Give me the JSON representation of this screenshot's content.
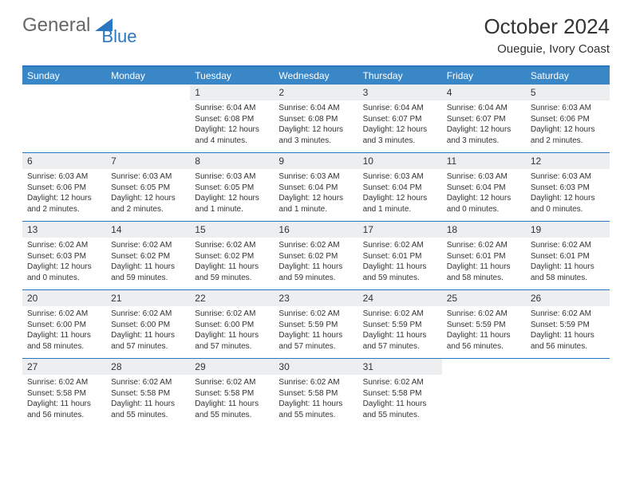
{
  "logo": {
    "text1": "General",
    "text2": "Blue"
  },
  "title": "October 2024",
  "location": "Oueguie, Ivory Coast",
  "colors": {
    "accent": "#3a87c8",
    "accent_dark": "#2a78c2",
    "head_bg": "#eceef0",
    "text": "#333333",
    "bg": "#ffffff"
  },
  "dow": [
    "Sunday",
    "Monday",
    "Tuesday",
    "Wednesday",
    "Thursday",
    "Friday",
    "Saturday"
  ],
  "weeks": [
    [
      null,
      null,
      {
        "n": "1",
        "sr": "Sunrise: 6:04 AM",
        "ss": "Sunset: 6:08 PM",
        "dl": "Daylight: 12 hours and 4 minutes."
      },
      {
        "n": "2",
        "sr": "Sunrise: 6:04 AM",
        "ss": "Sunset: 6:08 PM",
        "dl": "Daylight: 12 hours and 3 minutes."
      },
      {
        "n": "3",
        "sr": "Sunrise: 6:04 AM",
        "ss": "Sunset: 6:07 PM",
        "dl": "Daylight: 12 hours and 3 minutes."
      },
      {
        "n": "4",
        "sr": "Sunrise: 6:04 AM",
        "ss": "Sunset: 6:07 PM",
        "dl": "Daylight: 12 hours and 3 minutes."
      },
      {
        "n": "5",
        "sr": "Sunrise: 6:03 AM",
        "ss": "Sunset: 6:06 PM",
        "dl": "Daylight: 12 hours and 2 minutes."
      }
    ],
    [
      {
        "n": "6",
        "sr": "Sunrise: 6:03 AM",
        "ss": "Sunset: 6:06 PM",
        "dl": "Daylight: 12 hours and 2 minutes."
      },
      {
        "n": "7",
        "sr": "Sunrise: 6:03 AM",
        "ss": "Sunset: 6:05 PM",
        "dl": "Daylight: 12 hours and 2 minutes."
      },
      {
        "n": "8",
        "sr": "Sunrise: 6:03 AM",
        "ss": "Sunset: 6:05 PM",
        "dl": "Daylight: 12 hours and 1 minute."
      },
      {
        "n": "9",
        "sr": "Sunrise: 6:03 AM",
        "ss": "Sunset: 6:04 PM",
        "dl": "Daylight: 12 hours and 1 minute."
      },
      {
        "n": "10",
        "sr": "Sunrise: 6:03 AM",
        "ss": "Sunset: 6:04 PM",
        "dl": "Daylight: 12 hours and 1 minute."
      },
      {
        "n": "11",
        "sr": "Sunrise: 6:03 AM",
        "ss": "Sunset: 6:04 PM",
        "dl": "Daylight: 12 hours and 0 minutes."
      },
      {
        "n": "12",
        "sr": "Sunrise: 6:03 AM",
        "ss": "Sunset: 6:03 PM",
        "dl": "Daylight: 12 hours and 0 minutes."
      }
    ],
    [
      {
        "n": "13",
        "sr": "Sunrise: 6:02 AM",
        "ss": "Sunset: 6:03 PM",
        "dl": "Daylight: 12 hours and 0 minutes."
      },
      {
        "n": "14",
        "sr": "Sunrise: 6:02 AM",
        "ss": "Sunset: 6:02 PM",
        "dl": "Daylight: 11 hours and 59 minutes."
      },
      {
        "n": "15",
        "sr": "Sunrise: 6:02 AM",
        "ss": "Sunset: 6:02 PM",
        "dl": "Daylight: 11 hours and 59 minutes."
      },
      {
        "n": "16",
        "sr": "Sunrise: 6:02 AM",
        "ss": "Sunset: 6:02 PM",
        "dl": "Daylight: 11 hours and 59 minutes."
      },
      {
        "n": "17",
        "sr": "Sunrise: 6:02 AM",
        "ss": "Sunset: 6:01 PM",
        "dl": "Daylight: 11 hours and 59 minutes."
      },
      {
        "n": "18",
        "sr": "Sunrise: 6:02 AM",
        "ss": "Sunset: 6:01 PM",
        "dl": "Daylight: 11 hours and 58 minutes."
      },
      {
        "n": "19",
        "sr": "Sunrise: 6:02 AM",
        "ss": "Sunset: 6:01 PM",
        "dl": "Daylight: 11 hours and 58 minutes."
      }
    ],
    [
      {
        "n": "20",
        "sr": "Sunrise: 6:02 AM",
        "ss": "Sunset: 6:00 PM",
        "dl": "Daylight: 11 hours and 58 minutes."
      },
      {
        "n": "21",
        "sr": "Sunrise: 6:02 AM",
        "ss": "Sunset: 6:00 PM",
        "dl": "Daylight: 11 hours and 57 minutes."
      },
      {
        "n": "22",
        "sr": "Sunrise: 6:02 AM",
        "ss": "Sunset: 6:00 PM",
        "dl": "Daylight: 11 hours and 57 minutes."
      },
      {
        "n": "23",
        "sr": "Sunrise: 6:02 AM",
        "ss": "Sunset: 5:59 PM",
        "dl": "Daylight: 11 hours and 57 minutes."
      },
      {
        "n": "24",
        "sr": "Sunrise: 6:02 AM",
        "ss": "Sunset: 5:59 PM",
        "dl": "Daylight: 11 hours and 57 minutes."
      },
      {
        "n": "25",
        "sr": "Sunrise: 6:02 AM",
        "ss": "Sunset: 5:59 PM",
        "dl": "Daylight: 11 hours and 56 minutes."
      },
      {
        "n": "26",
        "sr": "Sunrise: 6:02 AM",
        "ss": "Sunset: 5:59 PM",
        "dl": "Daylight: 11 hours and 56 minutes."
      }
    ],
    [
      {
        "n": "27",
        "sr": "Sunrise: 6:02 AM",
        "ss": "Sunset: 5:58 PM",
        "dl": "Daylight: 11 hours and 56 minutes."
      },
      {
        "n": "28",
        "sr": "Sunrise: 6:02 AM",
        "ss": "Sunset: 5:58 PM",
        "dl": "Daylight: 11 hours and 55 minutes."
      },
      {
        "n": "29",
        "sr": "Sunrise: 6:02 AM",
        "ss": "Sunset: 5:58 PM",
        "dl": "Daylight: 11 hours and 55 minutes."
      },
      {
        "n": "30",
        "sr": "Sunrise: 6:02 AM",
        "ss": "Sunset: 5:58 PM",
        "dl": "Daylight: 11 hours and 55 minutes."
      },
      {
        "n": "31",
        "sr": "Sunrise: 6:02 AM",
        "ss": "Sunset: 5:58 PM",
        "dl": "Daylight: 11 hours and 55 minutes."
      },
      null,
      null
    ]
  ]
}
